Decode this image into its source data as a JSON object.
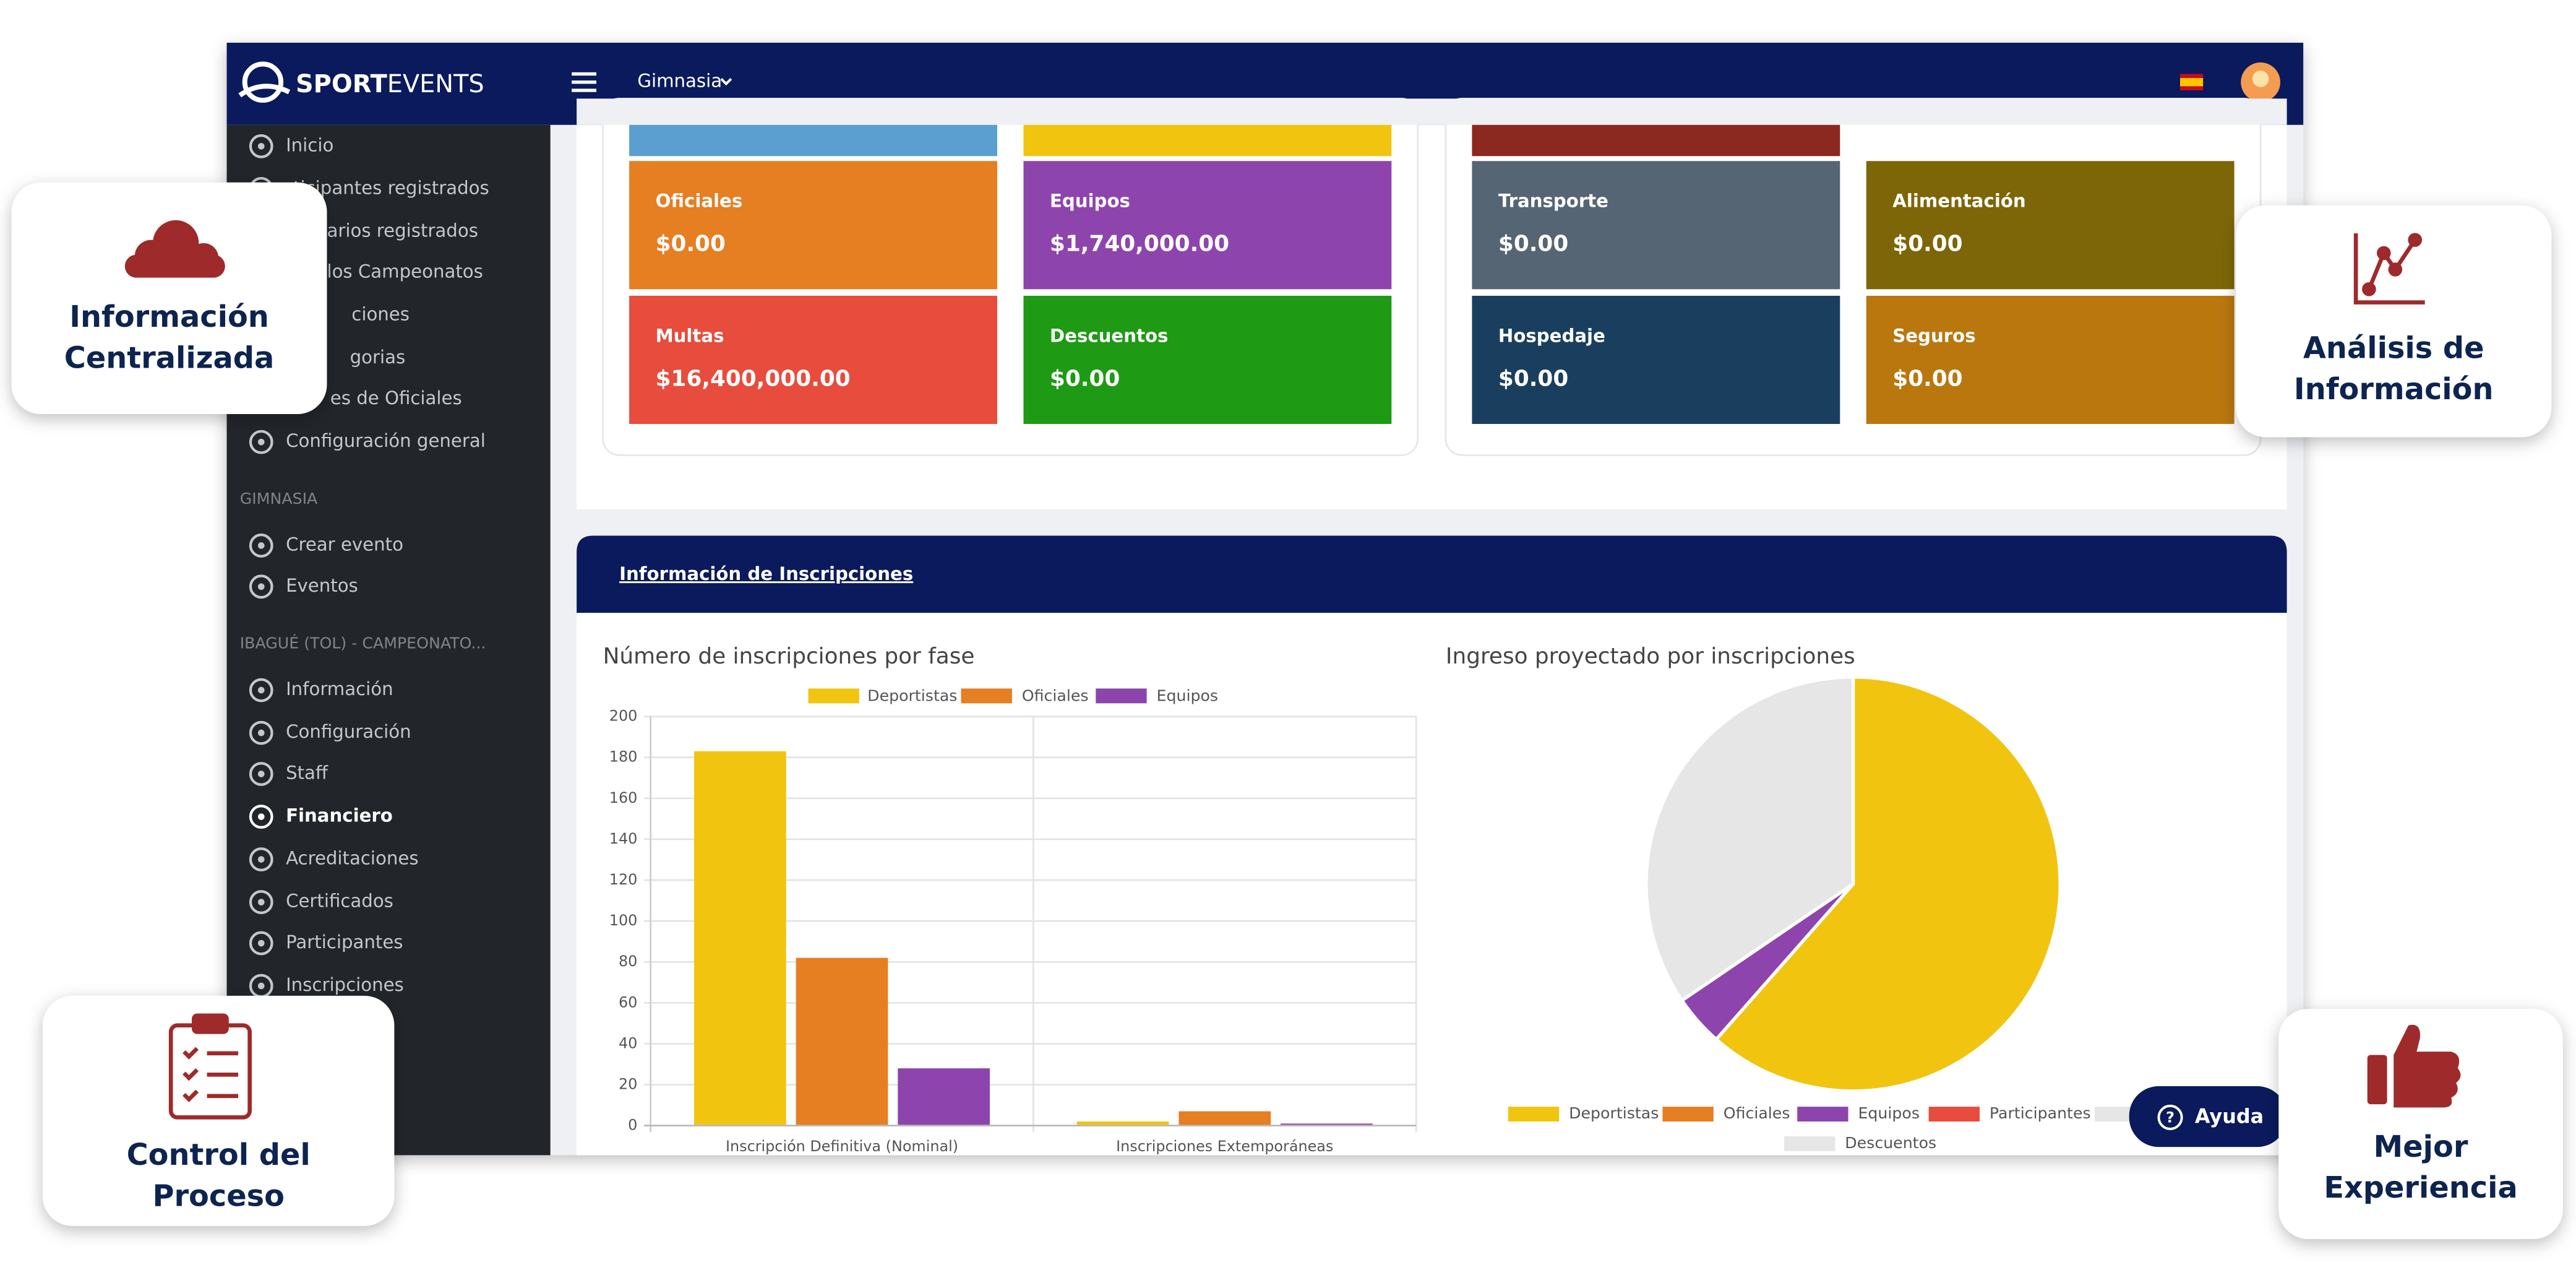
{
  "header": {
    "logo_bold": "SPORT",
    "logo_light": "EVENTS",
    "menu": "Gimnasia"
  },
  "sidebar": {
    "groups": [
      {
        "items": [
          {
            "label": "Inicio"
          },
          {
            "label": "rticipantes registrados"
          },
          {
            "label": "arios registrados"
          },
          {
            "label": "los Campeonatos"
          },
          {
            "label": "ciones"
          },
          {
            "label": "gorias"
          },
          {
            "label": "es de Oficiales"
          },
          {
            "label": "Configuración general"
          }
        ]
      },
      {
        "heading": "GIMNASIA",
        "items": [
          {
            "label": "Crear evento"
          },
          {
            "label": "Eventos"
          }
        ]
      },
      {
        "heading": "IBAGUÉ (TOL) - CAMPEONATO...",
        "items": [
          {
            "label": "Información"
          },
          {
            "label": "Configuración"
          },
          {
            "label": "Staff"
          },
          {
            "label": "Financiero",
            "active": true
          },
          {
            "label": "Acreditaciones"
          },
          {
            "label": "Certificados"
          },
          {
            "label": "Participantes"
          },
          {
            "label": "Inscripciones"
          }
        ]
      }
    ]
  },
  "tiles": [
    {
      "color": "#5a9fd0"
    },
    {
      "color": "#f1c40f"
    },
    {
      "label": "Oficiales",
      "amount": "$0.00",
      "color": "#e67e22"
    },
    {
      "label": "Equipos",
      "amount": "$1,740,000.00",
      "color": "#8e44ad"
    },
    {
      "label": "Multas",
      "amount": "$16,400,000.00",
      "color": "#e74c3c"
    },
    {
      "label": "Descuentos",
      "amount": "$0.00",
      "color": "#1e9a14"
    },
    {
      "color": "#8b2820"
    },
    {
      "label": "Transporte",
      "amount": "$0.00",
      "color": "#566573"
    },
    {
      "label": "Alimentación",
      "amount": "$0.00",
      "color": "#7d6608"
    },
    {
      "label": "Hospedaje",
      "amount": "$0.00",
      "color": "#1a3f5e"
    },
    {
      "label": "Seguros",
      "amount": "$0.00",
      "color": "#b9770e"
    }
  ],
  "section": {
    "title": "Información de Inscripciones"
  },
  "chart_data": [
    {
      "type": "bar",
      "title": "Número de inscripciones por fase",
      "categories": [
        "Inscripción Definitiva (Nominal)",
        "Inscripciones Extemporáneas"
      ],
      "series": [
        {
          "name": "Deportistas",
          "color": "#f1c40f",
          "values": [
            183,
            2
          ]
        },
        {
          "name": "Oficiales",
          "color": "#e67e22",
          "values": [
            82,
            7
          ]
        },
        {
          "name": "Equipos",
          "color": "#8e44ad",
          "values": [
            28,
            1
          ]
        }
      ],
      "ylim": [
        0,
        200
      ],
      "yticks": [
        0,
        20,
        40,
        60,
        80,
        100,
        120,
        140,
        160,
        180,
        200
      ],
      "grid": true
    },
    {
      "type": "pie",
      "title": "Ingreso proyectado por inscripciones",
      "categories": [
        "Deportistas",
        "Oficiales",
        "Equipos",
        "Participantes",
        null,
        "Descuentos"
      ],
      "values": [
        61.5,
        0,
        4,
        0,
        34.5,
        0
      ],
      "colors": [
        "#f1c40f",
        "#e67e22",
        "#8e44ad",
        "#e74c3c",
        "#e6e6e6",
        "#e6e6e6"
      ]
    }
  ],
  "help_button": "Ayuda",
  "callouts": [
    {
      "lines": [
        "Información",
        "Centralizada"
      ]
    },
    {
      "lines": [
        "Análisis de",
        "Información"
      ]
    },
    {
      "lines": [
        "Control del",
        "Proceso"
      ]
    },
    {
      "lines": [
        "Mejor",
        "Experiencia"
      ]
    }
  ]
}
